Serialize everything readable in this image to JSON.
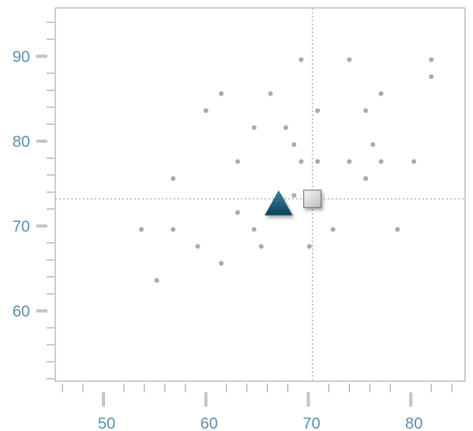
{
  "chart_data": {
    "type": "scatter",
    "title": "",
    "xlabel": "",
    "ylabel": "",
    "xlim": [
      45.3,
      85.3
    ],
    "ylim": [
      51.7,
      95.7
    ],
    "x_ticks": [
      50,
      60,
      70,
      80
    ],
    "x_tick_labels": [
      "50",
      "60",
      "70",
      "80"
    ],
    "y_ticks": [
      60,
      70,
      80,
      90
    ],
    "y_tick_labels": [
      "60",
      "70",
      "80",
      "90"
    ],
    "grid": false,
    "legend": "none",
    "series": [
      {
        "marker": "dot",
        "x": [
          69.3,
          74.0,
          82.0,
          82.0,
          61.5,
          66.3,
          60.0,
          70.9,
          75.6,
          77.1,
          64.7,
          67.8,
          68.6,
          76.3,
          63.1,
          69.3,
          70.9,
          74.0,
          77.1,
          80.3,
          56.8,
          75.6,
          68.6,
          63.1,
          53.7,
          56.8,
          64.7,
          72.4,
          78.7,
          59.2,
          65.4,
          70.1,
          61.5,
          55.2
        ],
        "y": [
          89.6,
          89.6,
          89.6,
          87.6,
          85.6,
          85.6,
          83.6,
          83.6,
          83.6,
          85.6,
          81.6,
          81.6,
          79.6,
          79.6,
          77.6,
          77.6,
          77.6,
          77.6,
          77.6,
          77.6,
          75.6,
          75.6,
          73.6,
          71.6,
          69.6,
          69.6,
          69.6,
          69.6,
          69.6,
          67.6,
          67.6,
          67.6,
          65.6,
          63.6
        ]
      }
    ],
    "special_points": [
      {
        "marker": "triangle",
        "x": 67.1,
        "y": 72.6
      },
      {
        "marker": "square",
        "x": 70.4,
        "y": 73.2
      }
    ],
    "reference_lines": {
      "x": 70.4,
      "y": 73.2
    },
    "colors": {
      "dot": "#aaaaaa",
      "tick_label": "#5b8fae",
      "axis": "#999999",
      "tick": "#999999",
      "major_tick": "#c4c4c4",
      "reference_line": "#b3b3b3",
      "triangle": "#1f5f7d",
      "square": "#dcdcdc"
    }
  }
}
